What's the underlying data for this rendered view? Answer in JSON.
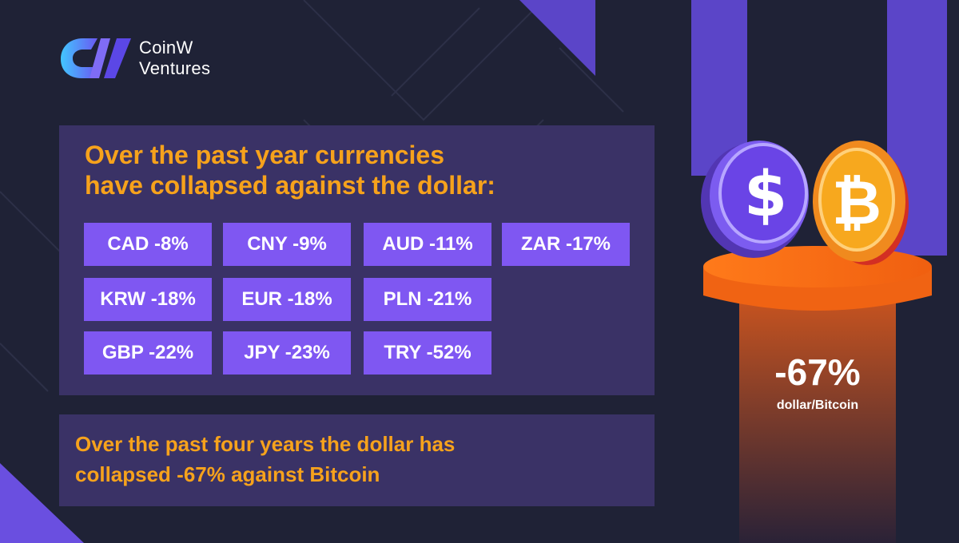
{
  "brand": {
    "line1": "CoinW",
    "line2": "Ventures",
    "logo_icon": "coinw-logo-icon"
  },
  "main_panel": {
    "headline_line1": "Over the past year currencies",
    "headline_line2": "have collapsed against the dollar:",
    "chips": [
      {
        "label": "CAD -8%",
        "currency": "CAD",
        "change_pct": -8
      },
      {
        "label": "CNY -9%",
        "currency": "CNY",
        "change_pct": -9
      },
      {
        "label": "AUD -11%",
        "currency": "AUD",
        "change_pct": -11
      },
      {
        "label": "ZAR -17%",
        "currency": "ZAR",
        "change_pct": -17
      },
      {
        "label": "KRW -18%",
        "currency": "KRW",
        "change_pct": -18
      },
      {
        "label": "EUR -18%",
        "currency": "EUR",
        "change_pct": -18
      },
      {
        "label": "PLN -21%",
        "currency": "PLN",
        "change_pct": -21
      },
      {
        "label": "GBP -22%",
        "currency": "GBP",
        "change_pct": -22
      },
      {
        "label": "JPY -23%",
        "currency": "JPY",
        "change_pct": -23
      },
      {
        "label": "TRY -52%",
        "currency": "TRY",
        "change_pct": -52
      }
    ]
  },
  "bottom_panel": {
    "line1": "Over the past four years the dollar has",
    "line2": "collapsed -67% against Bitcoin"
  },
  "illustration": {
    "value": "-67%",
    "label": "dollar/Bitcoin",
    "coins": [
      "dollar-coin-icon",
      "bitcoin-coin-icon"
    ]
  },
  "colors": {
    "background": "#1f2236",
    "panel": "#3a3266",
    "chip": "#7f57f2",
    "accent_text": "#f6a21c",
    "purple_shape": "#5b45c8",
    "pedestal_orange": "#f27018"
  }
}
